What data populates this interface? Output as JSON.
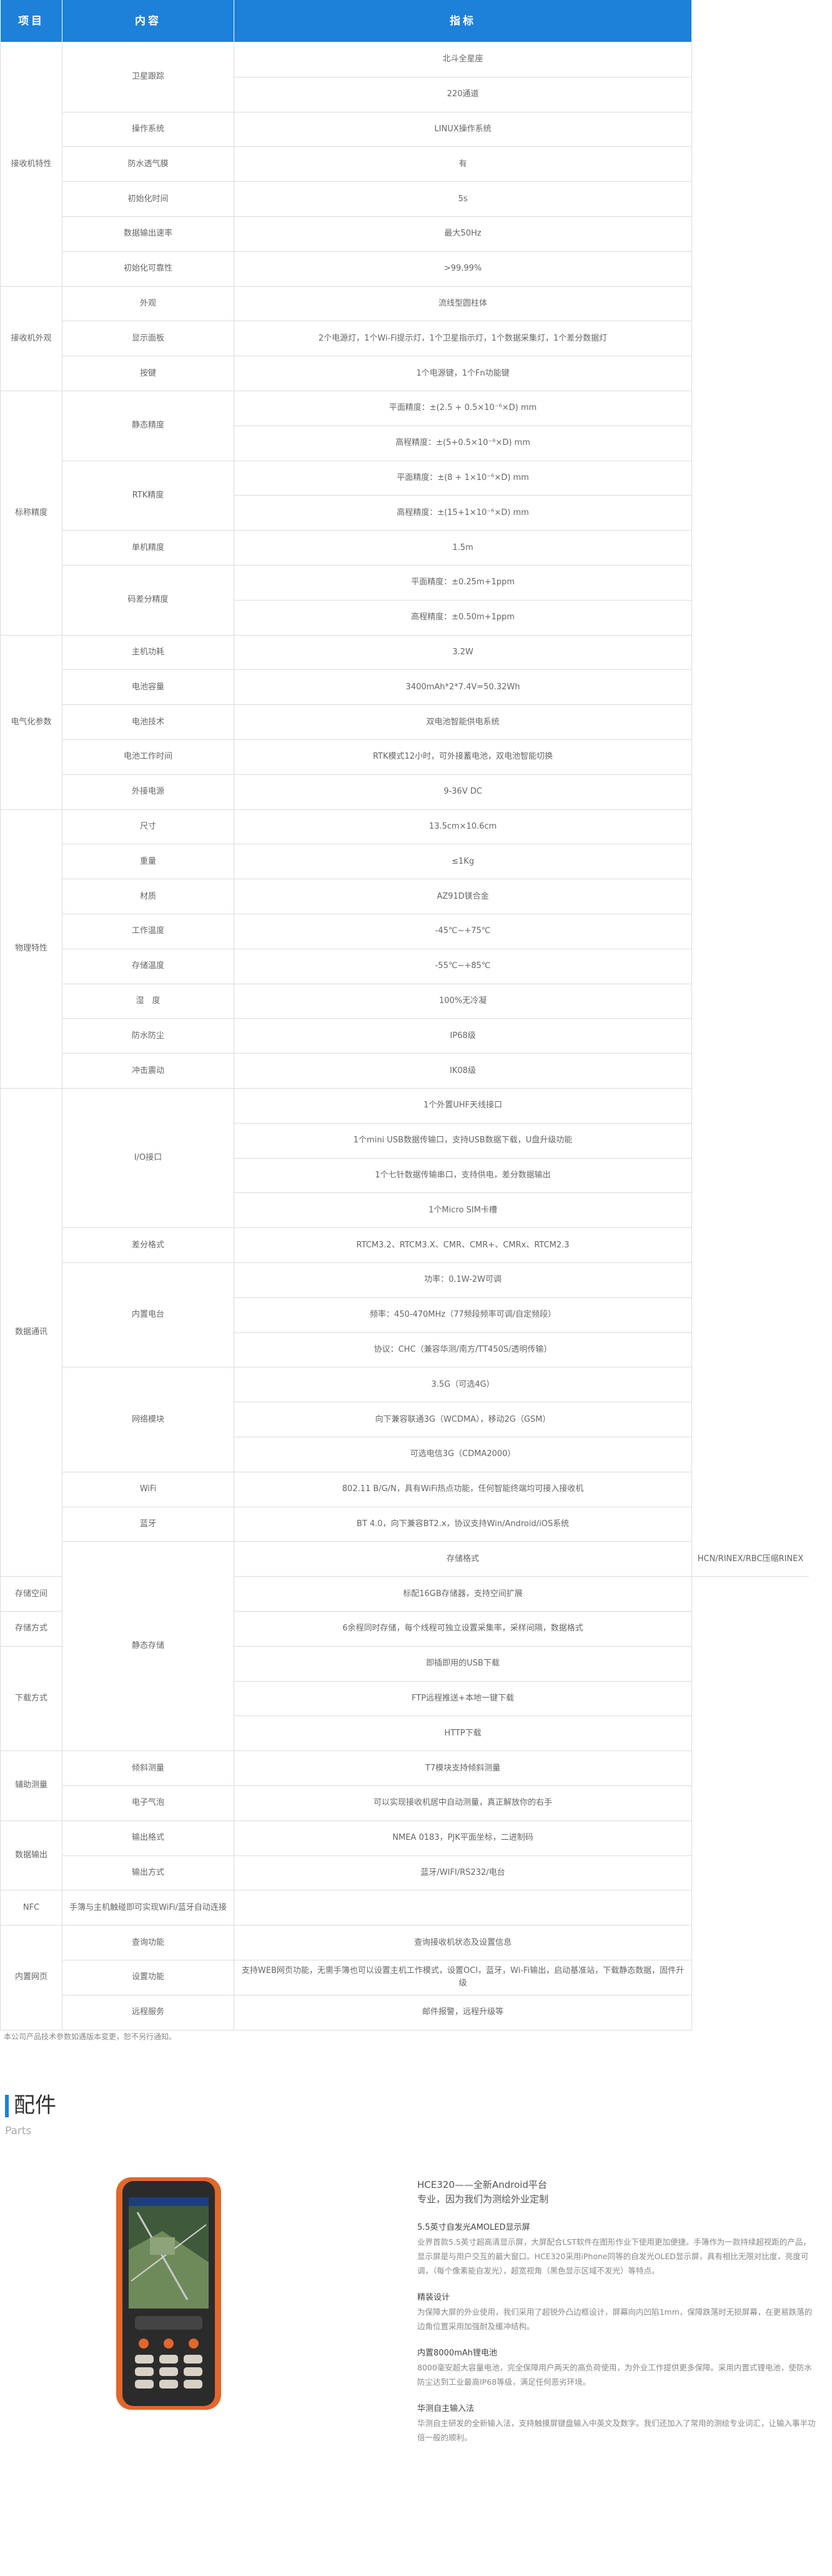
{
  "spec": {
    "header": [
      "项目",
      "内容",
      "指标"
    ],
    "groups": [
      {
        "label": "接收机特性",
        "items": [
          {
            "name": "卫星跟踪",
            "values": [
              "北斗全星座",
              "220通道"
            ]
          },
          {
            "name": "操作系统",
            "values": [
              "LINUX操作系统"
            ]
          },
          {
            "name": "防水透气膜",
            "values": [
              "有"
            ]
          },
          {
            "name": "初始化时间",
            "values": [
              "5s"
            ]
          },
          {
            "name": "数据输出速率",
            "values": [
              "最大50Hz"
            ]
          },
          {
            "name": "初始化可靠性",
            "values": [
              ">99.99%"
            ]
          }
        ]
      },
      {
        "label": "接收机外观",
        "items": [
          {
            "name": "外观",
            "values": [
              "流线型圆柱体"
            ]
          },
          {
            "name": "显示面板",
            "values": [
              "2个电源灯，1个Wi-Fi提示灯，1个卫星指示灯，1个数据采集灯，1个差分数据灯"
            ]
          },
          {
            "name": "按键",
            "values": [
              "1个电源键，1个Fn功能键"
            ]
          }
        ]
      },
      {
        "label": "标称精度",
        "items": [
          {
            "name": "静态精度",
            "values": [
              "平面精度：±(2.5 + 0.5×10⁻⁶×D) mm",
              "高程精度：±(5+0.5×10⁻⁶×D) mm"
            ]
          },
          {
            "name": "RTK精度",
            "values": [
              "平面精度：±(8 + 1×10⁻⁶×D) mm",
              "高程精度：±(15+1×10⁻⁶×D) mm"
            ]
          },
          {
            "name": "单机精度",
            "values": [
              "1.5m"
            ]
          },
          {
            "name": "码差分精度",
            "values": [
              "平面精度：±0.25m+1ppm",
              "高程精度：±0.50m+1ppm"
            ]
          }
        ]
      },
      {
        "label": "电气化参数",
        "items": [
          {
            "name": "主机功耗",
            "values": [
              "3.2W"
            ]
          },
          {
            "name": "电池容量",
            "values": [
              "3400mAh*2*7.4V=50.32Wh"
            ]
          },
          {
            "name": "电池技术",
            "values": [
              "双电池智能供电系统"
            ]
          },
          {
            "name": "电池工作时间",
            "values": [
              "RTK模式12小时，可外接蓄电池，双电池智能切换"
            ]
          },
          {
            "name": "外接电源",
            "values": [
              "9-36V DC"
            ]
          }
        ]
      },
      {
        "label": "物理特性",
        "items": [
          {
            "name": "尺寸",
            "values": [
              "13.5cm×10.6cm"
            ]
          },
          {
            "name": "重量",
            "values": [
              "≤1Kg"
            ]
          },
          {
            "name": "材质",
            "values": [
              "AZ91D镁合金"
            ]
          },
          {
            "name": "工作温度",
            "values": [
              "-45℃~+75℃"
            ]
          },
          {
            "name": "存储温度",
            "values": [
              "-55℃~+85℃"
            ]
          },
          {
            "name": "湿　度",
            "values": [
              "100%无冷凝"
            ]
          },
          {
            "name": "防水防尘",
            "values": [
              "IP68级"
            ]
          },
          {
            "name": "冲击震动",
            "values": [
              "IK08级"
            ]
          }
        ]
      },
      {
        "label": "数据通讯",
        "items": [
          {
            "name": "I/O接口",
            "values": [
              "1个外置UHF天线接口",
              "1个mini USB数据传输口，支持USB数据下载，U盘升级功能",
              "1个七针数据传输串口，支持供电，差分数据输出",
              "1个Micro SIM卡槽"
            ]
          },
          {
            "name": "差分格式",
            "values": [
              "RTCM3.2、RTCM3.X、CMR、CMR+、CMRx、RTCM2.3"
            ]
          },
          {
            "name": "内置电台",
            "values": [
              "功率：0.1W-2W可调",
              "频率：450-470MHz（77频段频率可调/自定频段）",
              "协议：CHC（兼容华测/南方/TT450S/透明传输）"
            ]
          },
          {
            "name": "网络模块",
            "values": [
              "3.5G（可选4G）",
              "向下兼容联通3G（WCDMA），移动2G（GSM）",
              "可选电信3G（CDMA2000）"
            ]
          },
          {
            "name": "WiFi",
            "values": [
              "802.11 B/G/N，具有WiFi热点功能，任何智能终端均可接入接收机"
            ]
          },
          {
            "name": "蓝牙",
            "values": [
              "BT 4.0，向下兼容BT2.x，协议支持Win/Android/iOS系统"
            ]
          },
          {
            "name": "静态存储",
            "values": [
              "存储格式"
            ],
            "note": "HCN/RINEX/RBC压缩RINEX"
          }
        ]
      },
      {
        "label": "存储空间",
        "items": [
          {
            "values": [
              "标配16GB存储器，支持空间扩展"
            ]
          }
        ]
      },
      {
        "label": "存储方式",
        "items": [
          {
            "values": [
              "6余程同时存储，每个线程可独立设置采集率，采样间隔，数据格式"
            ]
          }
        ]
      },
      {
        "label": "下载方式",
        "items": [
          {
            "values": [
              "即插即用的USB下载",
              "FTP远程推送+本地一键下载",
              "HTTP下载"
            ]
          }
        ]
      },
      {
        "label": "辅助测量",
        "items": [
          {
            "name": "倾斜测量",
            "values": [
              "T7模块支持倾斜测量"
            ]
          },
          {
            "name": "电子气泡",
            "values": [
              "可以实现接收机居中自动测量，真正解放你的右手"
            ]
          }
        ]
      },
      {
        "label": "数据输出",
        "items": [
          {
            "name": "输出格式",
            "values": [
              "NMEA 0183，PJK平面坐标，二进制码"
            ]
          },
          {
            "name": "输出方式",
            "values": [
              "蓝牙/WIFI/RS232/电台"
            ]
          }
        ]
      },
      {
        "label": "NFC",
        "items": [
          {
            "name": "手簿与主机触碰即可实现WiFi/蓝牙自动连接",
            "values": []
          }
        ]
      },
      {
        "label": "内置网页",
        "items": [
          {
            "name": "查询功能",
            "values": [
              "查询接收机状态及设置信息"
            ]
          },
          {
            "name": "设置功能",
            "values": [
              "支持WEB网页功能，无需手簿也可以设置主机工作模式，设置OCI，蓝牙，Wi-Fi输出，启动基准站，下载静态数据，固件升级"
            ]
          },
          {
            "name": "远程服务",
            "values": [
              "邮件报警，远程升级等"
            ]
          }
        ]
      }
    ],
    "note": "本公司产品技术参数如遇版本变更，恕不另行通知。"
  },
  "parts": {
    "title": "配件",
    "subtitle": "Parts",
    "product_title": "HCE320——全新Android平台",
    "product_subtitle": "专业，因为我们为测绘外业定制",
    "features": [
      {
        "heading": "5.5英寸自发光AMOLED显示屏",
        "text": "业界首款5.5英寸超高清显示屏，大屏配合LST软件在图形作业下使用更加便捷。手簿作为一款持续超视距的产品，显示屏是与用户交互的最大窗口。HCE320采用iPhone同等的自发光OLED显示屏，具有相比无限对比度，亮度可调，（每个像素能自发光），超宽视角（黑色显示区域不发光）等特点。"
      },
      {
        "heading": "精装设计",
        "text": "为保障大屏的外业使用，我们采用了超锐外凸边框设计，屏幕向内凹陷1mm，保障跌落时无损屏幕，在更易跌落的边角位置采用加强耐及缓冲结构。"
      },
      {
        "heading": "内置8000mAh锂电池",
        "text": "8000毫安超大容量电池，完全保障用户两天的高负荷使用，为外业工作提供更多保障。采用内置式锂电池，使防水防尘达到工业最高IP68等级，满足任何恶劣环境。"
      },
      {
        "heading": "华测自主输入法",
        "text": "华测自主研发的全新输入法，支持触摸屏键盘输入中英文及数字。我们还加入了常用的测绘专业词汇，让输入事半功倍一般的顺利。"
      }
    ]
  }
}
